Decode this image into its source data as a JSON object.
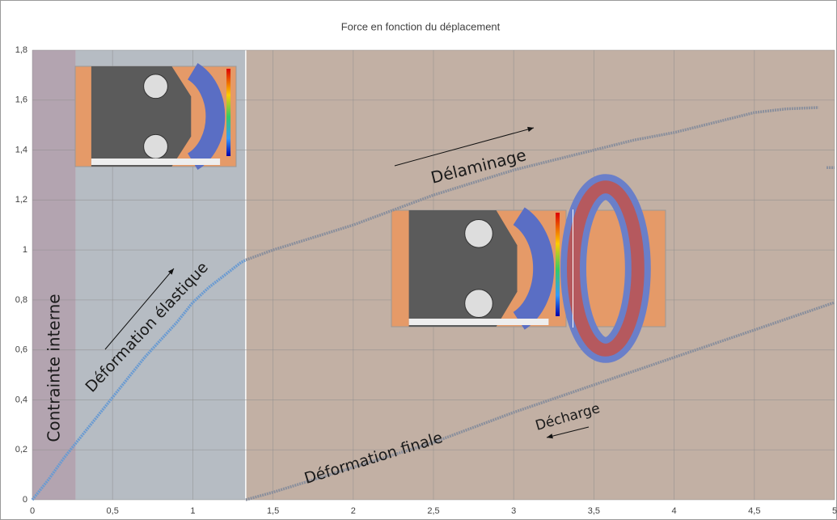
{
  "chart_data": {
    "type": "line",
    "title": "Force en fonction du déplacement",
    "xlim": [
      0,
      5
    ],
    "xticks": [
      0,
      {
        "value": 0.5,
        "label": "0,5"
      },
      1,
      {
        "value": 1.5,
        "label": "1,5"
      },
      2,
      {
        "value": 2.5,
        "label": "2,5"
      },
      3,
      {
        "value": 3.5,
        "label": "3,5"
      },
      4,
      {
        "value": 4.5,
        "label": "4,5"
      },
      5
    ],
    "ylim": [
      0,
      1.8
    ],
    "yticks": [
      0,
      {
        "value": 0.2,
        "label": "0,2"
      },
      {
        "value": 0.4,
        "label": "0,4"
      },
      {
        "value": 0.6,
        "label": "0,6"
      },
      {
        "value": 0.8,
        "label": "0,8"
      },
      1,
      {
        "value": 1.2,
        "label": "1,2"
      },
      {
        "value": 1.4,
        "label": "1,4"
      },
      {
        "value": 1.6,
        "label": "1,6"
      },
      {
        "value": 1.8,
        "label": "1,8"
      }
    ],
    "grid": true,
    "regions": [
      {
        "from": 0,
        "to": 0.27,
        "color": "#b3a4b0"
      },
      {
        "from": 0.27,
        "to": 1.33,
        "color": "#b6bcc3"
      },
      {
        "from": 1.33,
        "to": 5,
        "color": "#c2b0a4"
      }
    ],
    "series": [
      {
        "color": "#6b9bd1",
        "x": [
          0,
          0.1,
          0.2,
          0.3,
          0.4,
          0.5,
          0.6,
          0.7,
          0.8,
          0.9,
          1.0,
          1.1,
          1.2,
          1.3,
          1.33
        ],
        "values": [
          0,
          0.08,
          0.17,
          0.25,
          0.33,
          0.41,
          0.49,
          0.57,
          0.64,
          0.71,
          0.79,
          0.85,
          0.9,
          0.95,
          0.96
        ]
      },
      {
        "color": "#8a8f9c",
        "x": [
          1.33,
          1.5,
          1.75,
          2.0,
          2.25,
          2.5,
          2.75,
          3.0,
          3.25,
          3.5,
          3.75,
          4.0,
          4.25,
          4.5,
          4.7,
          4.9,
          4.93,
          4.95,
          5.0
        ],
        "values": [
          0.96,
          1.0,
          1.05,
          1.1,
          1.16,
          1.22,
          1.27,
          1.32,
          1.36,
          1.4,
          1.44,
          1.47,
          1.51,
          1.55,
          1.565,
          1.57,
          null,
          1.33,
          1.33
        ]
      },
      {
        "color": "#8a8f9c",
        "x": [
          1.33,
          1.5,
          2.0,
          2.5,
          3.0,
          3.5,
          4.0,
          4.5,
          5.0
        ],
        "values": [
          0,
          0.03,
          0.13,
          0.23,
          0.35,
          0.46,
          0.57,
          0.68,
          0.79
        ]
      }
    ],
    "annotations": [
      "Contrainte interne",
      "Déformation élastique",
      "Délaminage",
      "Décharge",
      "Déformation finale"
    ]
  }
}
